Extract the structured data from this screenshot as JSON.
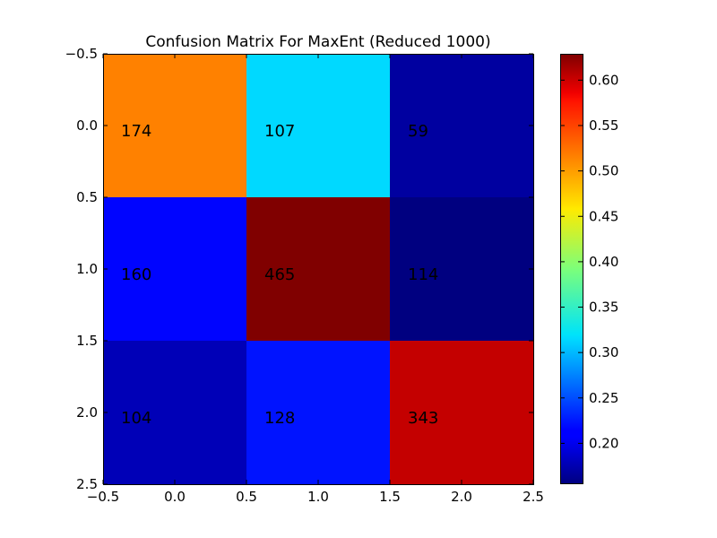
{
  "chart_data": {
    "type": "heatmap",
    "title": "Confusion Matrix For MaxEnt (Reduced 1000)",
    "xlabel": "",
    "ylabel": "",
    "xlim": [
      -0.5,
      2.5
    ],
    "ylim": [
      2.5,
      -0.5
    ],
    "x_ticks": [
      "−0.5",
      "0.0",
      "0.5",
      "1.0",
      "1.5",
      "2.0",
      "2.5"
    ],
    "y_ticks": [
      "−0.5",
      "0.0",
      "0.5",
      "1.0",
      "1.5",
      "2.0",
      "2.5"
    ],
    "matrix": [
      [
        174,
        107,
        59
      ],
      [
        160,
        465,
        114
      ],
      [
        104,
        128,
        343
      ]
    ],
    "normalized": [
      [
        0.51,
        0.315,
        0.17
      ],
      [
        0.216,
        0.629,
        0.155
      ],
      [
        0.181,
        0.223,
        0.597
      ]
    ],
    "colormap": "jet",
    "colorbar": {
      "min": 0.155,
      "max": 0.629,
      "ticks": [
        0.2,
        0.25,
        0.3,
        0.35,
        0.4,
        0.45,
        0.5,
        0.55,
        0.6
      ],
      "tick_labels": [
        "0.20",
        "0.25",
        "0.30",
        "0.35",
        "0.40",
        "0.45",
        "0.50",
        "0.55",
        "0.60"
      ]
    },
    "grid": false,
    "legend": "none"
  }
}
